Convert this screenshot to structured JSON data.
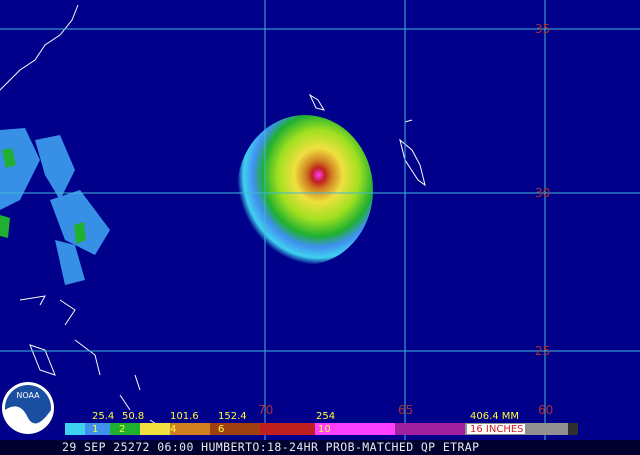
{
  "map": {
    "lat_labels": [
      "35",
      "30",
      "25"
    ],
    "lon_labels": [
      "70",
      "65",
      "60"
    ]
  },
  "logo": "NOAA",
  "colorbar": {
    "mm": [
      "25.4",
      "50.8",
      "101.6",
      "152.4",
      "254",
      "406.4 MM"
    ],
    "inches": [
      "1",
      "2",
      "4",
      "6",
      "10",
      "16 INCHES"
    ]
  },
  "footer": "29 SEP 25272 06:00 HUMBERTO:18-24HR PROB-MATCHED QP ETRAP"
}
